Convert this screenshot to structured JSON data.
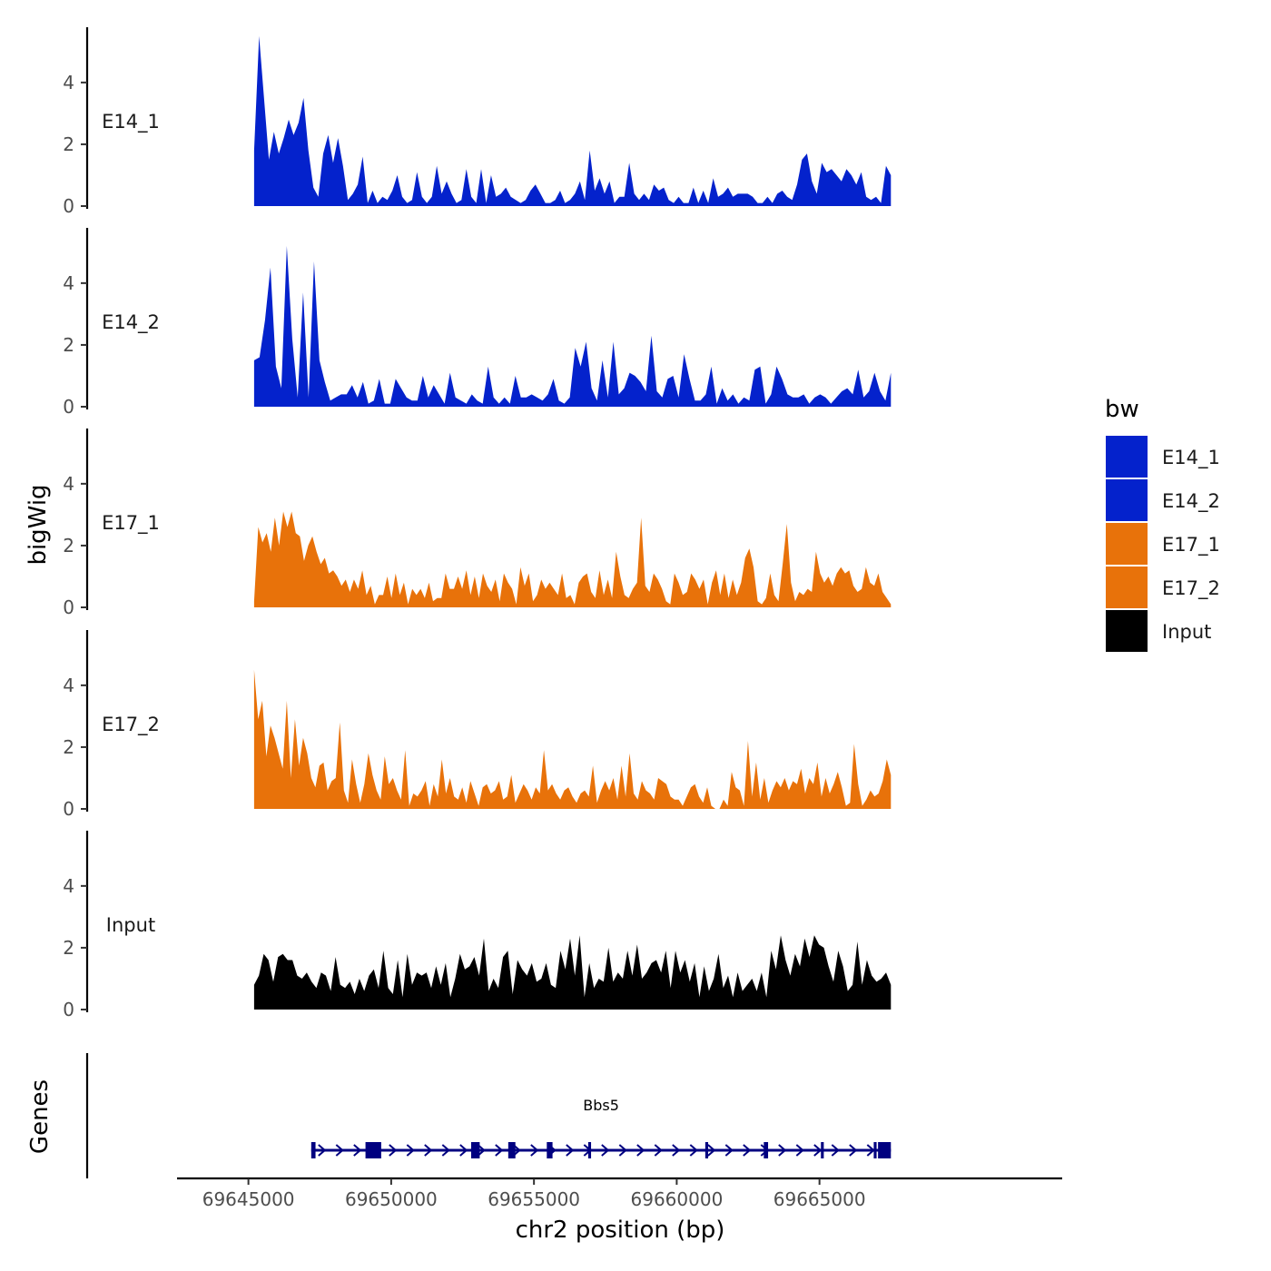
{
  "chart_data": {
    "type": "area",
    "title": "",
    "ylabel": "bigWig",
    "xlabel": "chr2 position (bp)",
    "x_ticks": [
      69645000,
      69650000,
      69655000,
      69660000,
      69665000
    ],
    "x_tick_labels": [
      "69645000",
      "69650000",
      "69655000",
      "69660000",
      "69665000"
    ],
    "xlim": [
      69642500,
      69673500
    ],
    "ylim": [
      0,
      5.7
    ],
    "y_ticks": [
      0,
      2,
      4
    ],
    "y_tick_labels": [
      "0",
      "2",
      "4"
    ],
    "x_start": 69645200,
    "x_end": 69667500,
    "legend": {
      "title": "bw",
      "position": "right",
      "items": [
        {
          "label": "E14_1",
          "color": "#0422cc"
        },
        {
          "label": "E14_2",
          "color": "#0422cc"
        },
        {
          "label": "E17_1",
          "color": "#e8720a"
        },
        {
          "label": "E17_2",
          "color": "#e8720a"
        },
        {
          "label": "Input",
          "color": "#000000"
        }
      ]
    },
    "series": [
      {
        "name": "E14_1",
        "color": "#0422cc",
        "values": [
          1.8,
          5.5,
          3.5,
          1.5,
          2.4,
          1.7,
          2.2,
          2.8,
          2.3,
          2.7,
          3.5,
          1.8,
          0.6,
          0.3,
          1.7,
          2.3,
          1.4,
          2.2,
          1.3,
          0.2,
          0.4,
          0.7,
          1.6,
          0.1,
          0.5,
          0.1,
          0.3,
          0.2,
          0.5,
          1.0,
          0.3,
          0.1,
          0.2,
          1.1,
          0.3,
          0.1,
          0.3,
          1.3,
          0.4,
          0.8,
          0.4,
          0.1,
          0.2,
          1.2,
          0.3,
          0.1,
          1.2,
          0.1,
          1.0,
          0.3,
          0.4,
          0.6,
          0.3,
          0.2,
          0.1,
          0.2,
          0.5,
          0.7,
          0.4,
          0.1,
          0.1,
          0.2,
          0.5,
          0.1,
          0.2,
          0.4,
          0.8,
          0.2,
          1.8,
          0.5,
          0.9,
          0.4,
          0.8,
          0.1,
          0.3,
          0.3,
          1.4,
          0.4,
          0.2,
          0.4,
          0.2,
          0.7,
          0.5,
          0.6,
          0.2,
          0.1,
          0.3,
          0.1,
          0.1,
          0.6,
          0.1,
          0.5,
          0.1,
          0.9,
          0.3,
          0.4,
          0.6,
          0.3,
          0.4,
          0.4,
          0.4,
          0.3,
          0.1,
          0.1,
          0.3,
          0.1,
          0.4,
          0.5,
          0.3,
          0.2,
          0.7,
          1.5,
          1.7,
          0.8,
          0.4,
          1.4,
          1.1,
          1.2,
          1.0,
          0.8,
          1.2,
          1.0,
          0.7,
          1.1,
          0.3,
          0.2,
          0.3,
          0.1,
          1.3,
          1.0
        ]
      },
      {
        "name": "E14_2",
        "color": "#0422cc",
        "values": [
          1.5,
          1.6,
          2.8,
          4.5,
          1.3,
          0.6,
          5.2,
          2.2,
          0.3,
          3.7,
          0.3,
          4.7,
          1.5,
          0.8,
          0.2,
          0.3,
          0.4,
          0.4,
          0.7,
          0.3,
          0.8,
          0.1,
          0.2,
          0.9,
          0.1,
          0.1,
          0.9,
          0.6,
          0.3,
          0.2,
          0.2,
          1.0,
          0.3,
          0.7,
          0.4,
          0.1,
          1.1,
          0.3,
          0.2,
          0.1,
          0.4,
          0.2,
          0.1,
          1.3,
          0.3,
          0.1,
          0.3,
          0.1,
          1.0,
          0.3,
          0.3,
          0.4,
          0.3,
          0.2,
          0.4,
          0.9,
          0.2,
          0.1,
          0.3,
          1.9,
          1.3,
          2.1,
          0.6,
          0.2,
          1.5,
          0.3,
          2.1,
          0.4,
          0.6,
          1.1,
          1.0,
          0.8,
          0.5,
          2.3,
          0.5,
          0.3,
          0.9,
          1.0,
          0.3,
          1.7,
          0.9,
          0.2,
          0.2,
          0.4,
          1.3,
          0.1,
          0.6,
          0.2,
          0.4,
          0.1,
          0.3,
          0.2,
          1.2,
          1.3,
          0.1,
          0.4,
          1.3,
          0.9,
          0.4,
          0.3,
          0.3,
          0.4,
          0.1,
          0.3,
          0.4,
          0.3,
          0.1,
          0.3,
          0.5,
          0.6,
          0.4,
          1.2,
          0.3,
          0.5,
          1.1,
          0.5,
          0.2,
          1.1
        ]
      },
      {
        "name": "E17_1",
        "color": "#e8720a",
        "values": [
          0.2,
          2.6,
          2.1,
          2.4,
          1.8,
          2.9,
          2.0,
          3.1,
          2.6,
          3.1,
          2.4,
          2.3,
          1.5,
          2.0,
          2.3,
          1.8,
          1.4,
          1.6,
          1.1,
          1.2,
          1.0,
          0.7,
          0.9,
          0.5,
          0.9,
          0.6,
          1.2,
          0.4,
          0.7,
          0.1,
          0.4,
          0.4,
          1.0,
          0.3,
          1.1,
          0.4,
          0.8,
          0.1,
          0.6,
          0.4,
          0.6,
          0.3,
          0.8,
          0.2,
          0.3,
          0.3,
          1.1,
          0.6,
          0.6,
          1.0,
          0.6,
          1.2,
          0.4,
          1.0,
          0.3,
          1.1,
          0.7,
          0.5,
          0.9,
          0.2,
          1.1,
          0.8,
          0.6,
          0.1,
          1.3,
          0.7,
          1.1,
          0.2,
          0.4,
          0.9,
          0.6,
          0.8,
          0.6,
          0.4,
          1.1,
          0.3,
          0.4,
          0.1,
          0.8,
          1.0,
          1.1,
          0.5,
          0.3,
          1.2,
          0.4,
          0.9,
          0.3,
          1.8,
          1.0,
          0.4,
          0.3,
          0.6,
          0.8,
          2.9,
          0.7,
          0.5,
          1.1,
          0.9,
          0.6,
          0.2,
          0.1,
          1.1,
          0.8,
          0.4,
          0.5,
          1.1,
          0.9,
          0.6,
          0.9,
          0.1,
          0.8,
          1.2,
          0.4,
          1.1,
          0.3,
          0.9,
          0.4,
          0.8,
          1.6,
          1.9,
          1.3,
          0.2,
          0.1,
          0.3,
          1.1,
          0.4,
          0.2,
          1.4,
          2.7,
          0.8,
          0.2,
          0.5,
          0.4,
          0.6,
          0.5,
          1.8,
          1.1,
          0.8,
          1.0,
          0.7,
          1.1,
          1.3,
          1.1,
          1.2,
          0.7,
          0.5,
          0.6,
          1.3,
          0.8,
          0.7,
          1.1,
          0.5,
          0.3,
          0.1
        ]
      },
      {
        "name": "E17_2",
        "color": "#e8720a",
        "values": [
          4.5,
          2.9,
          3.5,
          1.7,
          2.7,
          2.3,
          1.8,
          1.3,
          3.5,
          1.0,
          2.9,
          1.4,
          2.3,
          1.8,
          1.0,
          0.7,
          1.4,
          1.5,
          0.6,
          0.9,
          1.0,
          2.8,
          0.6,
          0.2,
          1.6,
          0.8,
          0.2,
          0.8,
          1.8,
          1.1,
          0.6,
          0.3,
          1.7,
          0.8,
          1.0,
          0.6,
          0.3,
          1.9,
          0.1,
          0.5,
          0.4,
          0.6,
          0.9,
          0.1,
          0.8,
          0.4,
          1.6,
          0.5,
          1.0,
          0.4,
          0.3,
          0.7,
          0.2,
          0.9,
          0.5,
          0.1,
          0.7,
          0.8,
          0.5,
          0.6,
          0.9,
          0.3,
          0.4,
          1.1,
          0.2,
          0.5,
          0.8,
          0.6,
          0.3,
          0.7,
          0.5,
          1.9,
          0.6,
          0.8,
          0.5,
          0.3,
          0.6,
          0.7,
          0.4,
          0.2,
          0.5,
          0.6,
          0.4,
          1.4,
          0.2,
          0.6,
          0.9,
          0.6,
          1.0,
          0.3,
          1.4,
          0.4,
          1.8,
          0.5,
          0.3,
          0.9,
          0.6,
          0.5,
          0.3,
          1.0,
          0.9,
          0.8,
          0.4,
          0.3,
          0.3,
          0.1,
          0.4,
          0.7,
          0.8,
          0.4,
          0.2,
          0.7,
          0.1,
          0.0,
          0.0,
          0.3,
          0.1,
          1.2,
          0.7,
          0.6,
          0.1,
          2.2,
          0.4,
          1.5,
          0.3,
          1.0,
          0.2,
          0.6,
          0.9,
          0.7,
          1.0,
          0.6,
          0.9,
          0.8,
          1.3,
          0.5,
          1.0,
          0.8,
          1.5,
          0.4,
          1.0,
          0.5,
          0.8,
          1.2,
          0.7,
          0.1,
          0.2,
          2.1,
          0.8,
          0.1,
          0.3,
          0.6,
          0.4,
          0.5,
          0.9,
          1.6,
          1.1
        ]
      },
      {
        "name": "Input",
        "color": "#000000",
        "values": [
          0.8,
          1.1,
          1.8,
          1.6,
          0.9,
          1.7,
          1.8,
          1.6,
          1.6,
          1.1,
          1.0,
          1.2,
          0.9,
          0.7,
          1.2,
          1.1,
          0.6,
          1.7,
          0.8,
          0.7,
          0.9,
          0.5,
          1.0,
          0.6,
          1.1,
          1.3,
          0.7,
          1.9,
          0.7,
          0.5,
          1.6,
          0.4,
          1.8,
          0.8,
          1.2,
          1.1,
          1.2,
          0.7,
          1.4,
          0.8,
          1.5,
          0.4,
          1.0,
          1.8,
          1.3,
          1.4,
          1.7,
          1.1,
          2.3,
          0.6,
          1.0,
          0.7,
          1.7,
          1.9,
          0.5,
          1.6,
          1.3,
          1.1,
          1.5,
          0.9,
          1.0,
          1.5,
          0.8,
          0.7,
          1.9,
          1.3,
          2.3,
          1.1,
          2.4,
          0.4,
          1.5,
          0.7,
          1.0,
          0.9,
          2.0,
          0.9,
          1.2,
          1.0,
          1.9,
          1.1,
          2.1,
          1.0,
          1.2,
          1.5,
          1.6,
          1.2,
          1.9,
          0.7,
          1.9,
          1.2,
          1.6,
          0.9,
          1.5,
          0.4,
          1.4,
          0.6,
          1.0,
          1.8,
          0.7,
          1.1,
          0.4,
          1.2,
          0.6,
          0.8,
          1.0,
          0.6,
          1.2,
          0.4,
          1.9,
          1.3,
          2.4,
          1.6,
          1.1,
          1.8,
          1.4,
          2.3,
          1.7,
          2.4,
          2.1,
          2.0,
          1.4,
          0.9,
          1.9,
          1.4,
          0.6,
          0.8,
          2.2,
          0.8,
          1.6,
          1.1,
          0.9,
          1.0,
          1.2,
          0.8
        ]
      }
    ],
    "genes": {
      "track_label": "Genes",
      "items": [
        {
          "name": "Bbs5",
          "start": 69647200,
          "end": 69667500,
          "strand": "+",
          "color": "#000080",
          "exons": [
            [
              69647200,
              69647350
            ],
            [
              69649100,
              69649650
            ],
            [
              69652800,
              69653100
            ],
            [
              69654100,
              69654350
            ],
            [
              69655450,
              69655650
            ],
            [
              69656900,
              69657000
            ],
            [
              69661000,
              69661100
            ],
            [
              69663050,
              69663200
            ],
            [
              69665050,
              69665150
            ],
            [
              69666900,
              69667000
            ],
            [
              69667050,
              69667500
            ]
          ]
        }
      ]
    }
  }
}
